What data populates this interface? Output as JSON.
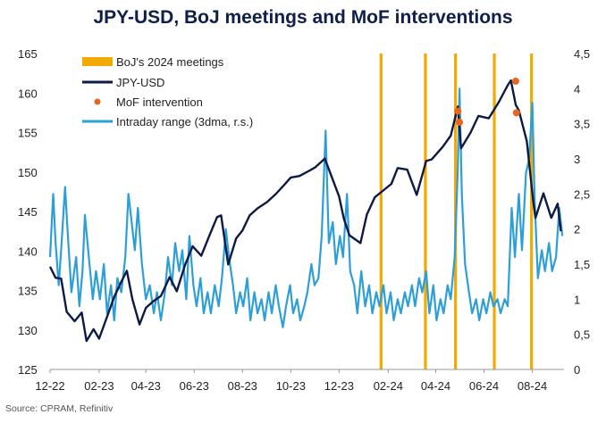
{
  "title": "JPY-USD, BoJ meetings and MoF interventions",
  "source": "Source: CPRAM, Refinitiv",
  "chart_data": {
    "type": "line",
    "title": "JPY-USD, BoJ meetings and MoF interventions",
    "x_axis": {
      "type": "date",
      "range": [
        "2022-12-01",
        "2024-09-10"
      ],
      "tick_labels": [
        {
          "label": "12-22",
          "date": "2022-12-01"
        },
        {
          "label": "02-23",
          "date": "2023-02-01"
        },
        {
          "label": "04-23",
          "date": "2023-04-01"
        },
        {
          "label": "06-23",
          "date": "2023-06-01"
        },
        {
          "label": "08-23",
          "date": "2023-08-01"
        },
        {
          "label": "10-23",
          "date": "2023-10-01"
        },
        {
          "label": "12-23",
          "date": "2023-12-01"
        },
        {
          "label": "02-24",
          "date": "2024-02-01"
        },
        {
          "label": "04-24",
          "date": "2024-04-01"
        },
        {
          "label": "06-24",
          "date": "2024-06-01"
        },
        {
          "label": "08-24",
          "date": "2024-08-01"
        }
      ]
    },
    "y_left": {
      "min": 125,
      "max": 165,
      "ticks": [
        125,
        130,
        135,
        140,
        145,
        150,
        155,
        160,
        165
      ]
    },
    "y_right": {
      "min": 0,
      "max": 4.5,
      "ticks": [
        "0",
        "0,5",
        "1",
        "1,5",
        "2",
        "2,5",
        "3",
        "3,5",
        "4",
        "4,5"
      ]
    },
    "grid": false,
    "legend_position": "top-left",
    "colors": {
      "boj": "#f2a900",
      "jpy": "#0d1a45",
      "mof": "#e8651c",
      "range": "#2d9fd8"
    },
    "boj_meetings": {
      "name": "BoJ's 2024 meetings",
      "dates": [
        "2024-01-23",
        "2024-03-19",
        "2024-04-26",
        "2024-06-14",
        "2024-07-31"
      ]
    },
    "jpy_usd": {
      "name": "JPY-USD",
      "axis": "left",
      "points": [
        [
          "2022-12-01",
          138.0
        ],
        [
          "2022-12-08",
          136.6
        ],
        [
          "2022-12-15",
          136.5
        ],
        [
          "2022-12-22",
          132.3
        ],
        [
          "2023-01-01",
          131.1
        ],
        [
          "2023-01-10",
          132.2
        ],
        [
          "2023-01-16",
          128.6
        ],
        [
          "2023-01-25",
          130.1
        ],
        [
          "2023-02-01",
          128.9
        ],
        [
          "2023-02-10",
          131.4
        ],
        [
          "2023-02-20",
          134.2
        ],
        [
          "2023-03-01",
          136.1
        ],
        [
          "2023-03-08",
          137.5
        ],
        [
          "2023-03-15",
          133.9
        ],
        [
          "2023-03-24",
          130.7
        ],
        [
          "2023-04-01",
          132.8
        ],
        [
          "2023-04-10",
          133.6
        ],
        [
          "2023-04-20",
          134.3
        ],
        [
          "2023-05-01",
          136.7
        ],
        [
          "2023-05-10",
          134.9
        ],
        [
          "2023-05-20",
          138.1
        ],
        [
          "2023-05-30",
          140.6
        ],
        [
          "2023-06-10",
          139.4
        ],
        [
          "2023-06-20",
          141.9
        ],
        [
          "2023-06-30",
          144.3
        ],
        [
          "2023-07-05",
          144.5
        ],
        [
          "2023-07-14",
          138.3
        ],
        [
          "2023-07-24",
          141.6
        ],
        [
          "2023-08-01",
          142.6
        ],
        [
          "2023-08-10",
          144.5
        ],
        [
          "2023-08-20",
          145.4
        ],
        [
          "2023-09-01",
          146.2
        ],
        [
          "2023-09-12",
          147.2
        ],
        [
          "2023-09-22",
          148.3
        ],
        [
          "2023-10-01",
          149.3
        ],
        [
          "2023-10-12",
          149.5
        ],
        [
          "2023-10-25",
          150.2
        ],
        [
          "2023-11-01",
          150.6
        ],
        [
          "2023-11-13",
          151.7
        ],
        [
          "2023-11-22",
          149.3
        ],
        [
          "2023-12-01",
          146.9
        ],
        [
          "2023-12-07",
          144.1
        ],
        [
          "2023-12-14",
          142.0
        ],
        [
          "2023-12-28",
          141.0
        ],
        [
          "2024-01-05",
          144.6
        ],
        [
          "2024-01-15",
          146.8
        ],
        [
          "2024-01-25",
          147.6
        ],
        [
          "2024-02-05",
          148.5
        ],
        [
          "2024-02-13",
          150.5
        ],
        [
          "2024-02-25",
          150.3
        ],
        [
          "2024-03-08",
          147.1
        ],
        [
          "2024-03-20",
          151.4
        ],
        [
          "2024-03-27",
          151.6
        ],
        [
          "2024-04-10",
          153.2
        ],
        [
          "2024-04-20",
          154.6
        ],
        [
          "2024-04-29",
          158.3
        ],
        [
          "2024-05-03",
          153.0
        ],
        [
          "2024-05-15",
          155.0
        ],
        [
          "2024-05-25",
          157.1
        ],
        [
          "2024-06-07",
          156.8
        ],
        [
          "2024-06-20",
          158.9
        ],
        [
          "2024-07-01",
          161.0
        ],
        [
          "2024-07-05",
          161.6
        ],
        [
          "2024-07-11",
          158.5
        ],
        [
          "2024-07-15",
          157.8
        ],
        [
          "2024-07-25",
          153.9
        ],
        [
          "2024-08-02",
          146.5
        ],
        [
          "2024-08-05",
          144.2
        ],
        [
          "2024-08-15",
          147.3
        ],
        [
          "2024-08-25",
          144.2
        ],
        [
          "2024-09-02",
          146.0
        ],
        [
          "2024-09-06",
          142.5
        ]
      ]
    },
    "mof_interventions": {
      "name": "MoF intervention",
      "axis": "left",
      "points": [
        [
          "2024-04-29",
          157.7
        ],
        [
          "2024-05-01",
          156.3
        ],
        [
          "2024-07-11",
          161.5
        ],
        [
          "2024-07-12",
          157.5
        ]
      ]
    },
    "intraday_range": {
      "name": "Intraday range (3dma, r.s.)",
      "axis": "right",
      "points": [
        [
          "2022-12-01",
          1.6
        ],
        [
          "2022-12-05",
          2.5
        ],
        [
          "2022-12-08",
          1.8
        ],
        [
          "2022-12-12",
          1.2
        ],
        [
          "2022-12-15",
          1.7
        ],
        [
          "2022-12-20",
          2.6
        ],
        [
          "2022-12-23",
          2.0
        ],
        [
          "2022-12-28",
          1.1
        ],
        [
          "2023-01-03",
          1.6
        ],
        [
          "2023-01-07",
          0.9
        ],
        [
          "2023-01-11",
          1.4
        ],
        [
          "2023-01-14",
          2.2
        ],
        [
          "2023-01-19",
          1.6
        ],
        [
          "2023-01-24",
          1.0
        ],
        [
          "2023-01-28",
          1.4
        ],
        [
          "2023-02-02",
          1.0
        ],
        [
          "2023-02-07",
          1.5
        ],
        [
          "2023-02-11",
          0.8
        ],
        [
          "2023-02-16",
          1.2
        ],
        [
          "2023-02-20",
          0.7
        ],
        [
          "2023-02-24",
          1.3
        ],
        [
          "2023-03-01",
          1.1
        ],
        [
          "2023-03-06",
          1.6
        ],
        [
          "2023-03-10",
          2.5
        ],
        [
          "2023-03-14",
          2.1
        ],
        [
          "2023-03-18",
          1.7
        ],
        [
          "2023-03-22",
          2.3
        ],
        [
          "2023-03-27",
          1.5
        ],
        [
          "2023-04-01",
          1.0
        ],
        [
          "2023-04-06",
          1.2
        ],
        [
          "2023-04-11",
          0.8
        ],
        [
          "2023-04-15",
          1.1
        ],
        [
          "2023-04-20",
          0.7
        ],
        [
          "2023-04-25",
          1.1
        ],
        [
          "2023-04-29",
          1.6
        ],
        [
          "2023-05-04",
          1.2
        ],
        [
          "2023-05-08",
          1.8
        ],
        [
          "2023-05-13",
          1.4
        ],
        [
          "2023-05-17",
          1.7
        ],
        [
          "2023-05-22",
          1.0
        ],
        [
          "2023-05-26",
          1.9
        ],
        [
          "2023-05-31",
          1.2
        ],
        [
          "2023-06-04",
          0.9
        ],
        [
          "2023-06-09",
          1.3
        ],
        [
          "2023-06-13",
          0.8
        ],
        [
          "2023-06-18",
          1.1
        ],
        [
          "2023-06-22",
          0.8
        ],
        [
          "2023-06-27",
          1.2
        ],
        [
          "2023-07-02",
          0.9
        ],
        [
          "2023-07-06",
          1.3
        ],
        [
          "2023-07-11",
          2.0
        ],
        [
          "2023-07-15",
          1.6
        ],
        [
          "2023-07-20",
          1.2
        ],
        [
          "2023-07-24",
          0.8
        ],
        [
          "2023-07-29",
          1.1
        ],
        [
          "2023-08-02",
          0.9
        ],
        [
          "2023-08-07",
          1.3
        ],
        [
          "2023-08-11",
          0.7
        ],
        [
          "2023-08-16",
          1.1
        ],
        [
          "2023-08-20",
          0.8
        ],
        [
          "2023-08-25",
          1.0
        ],
        [
          "2023-08-29",
          0.7
        ],
        [
          "2023-09-03",
          1.1
        ],
        [
          "2023-09-07",
          0.8
        ],
        [
          "2023-09-12",
          1.2
        ],
        [
          "2023-09-16",
          0.9
        ],
        [
          "2023-09-21",
          0.6
        ],
        [
          "2023-09-25",
          0.9
        ],
        [
          "2023-09-30",
          1.2
        ],
        [
          "2023-10-04",
          0.8
        ],
        [
          "2023-10-09",
          1.0
        ],
        [
          "2023-10-13",
          0.7
        ],
        [
          "2023-10-18",
          0.9
        ],
        [
          "2023-10-22",
          1.1
        ],
        [
          "2023-10-27",
          1.5
        ],
        [
          "2023-10-31",
          1.2
        ],
        [
          "2023-11-05",
          1.3
        ],
        [
          "2023-11-09",
          1.9
        ],
        [
          "2023-11-14",
          3.4
        ],
        [
          "2023-11-18",
          1.8
        ],
        [
          "2023-11-23",
          2.1
        ],
        [
          "2023-11-27",
          1.5
        ],
        [
          "2023-12-02",
          1.9
        ],
        [
          "2023-12-06",
          1.6
        ],
        [
          "2023-12-11",
          2.5
        ],
        [
          "2023-12-15",
          1.4
        ],
        [
          "2023-12-20",
          1.2
        ],
        [
          "2023-12-24",
          0.8
        ],
        [
          "2023-12-29",
          1.4
        ],
        [
          "2024-01-03",
          0.9
        ],
        [
          "2024-01-08",
          1.2
        ],
        [
          "2024-01-12",
          0.8
        ],
        [
          "2024-01-17",
          1.1
        ],
        [
          "2024-01-21",
          0.9
        ],
        [
          "2024-01-26",
          1.2
        ],
        [
          "2024-01-30",
          0.8
        ],
        [
          "2024-02-04",
          1.1
        ],
        [
          "2024-02-08",
          0.7
        ],
        [
          "2024-02-13",
          1.0
        ],
        [
          "2024-02-17",
          0.8
        ],
        [
          "2024-02-22",
          1.1
        ],
        [
          "2024-02-26",
          0.9
        ],
        [
          "2024-03-02",
          1.2
        ],
        [
          "2024-03-06",
          0.9
        ],
        [
          "2024-03-11",
          1.3
        ],
        [
          "2024-03-15",
          1.1
        ],
        [
          "2024-03-20",
          1.4
        ],
        [
          "2024-03-24",
          0.8
        ],
        [
          "2024-03-29",
          1.2
        ],
        [
          "2024-04-02",
          0.7
        ],
        [
          "2024-04-07",
          1.0
        ],
        [
          "2024-04-11",
          0.8
        ],
        [
          "2024-04-16",
          1.2
        ],
        [
          "2024-04-20",
          1.0
        ],
        [
          "2024-04-25",
          1.6
        ],
        [
          "2024-04-29",
          2.9
        ],
        [
          "2024-05-01",
          4.0
        ],
        [
          "2024-05-04",
          2.5
        ],
        [
          "2024-05-08",
          1.5
        ],
        [
          "2024-05-13",
          1.1
        ],
        [
          "2024-05-17",
          0.8
        ],
        [
          "2024-05-22",
          1.0
        ],
        [
          "2024-05-26",
          0.7
        ],
        [
          "2024-05-31",
          1.0
        ],
        [
          "2024-06-04",
          0.8
        ],
        [
          "2024-06-09",
          1.1
        ],
        [
          "2024-06-13",
          0.9
        ],
        [
          "2024-06-18",
          1.0
        ],
        [
          "2024-06-22",
          0.8
        ],
        [
          "2024-06-27",
          1.0
        ],
        [
          "2024-07-01",
          0.9
        ],
        [
          "2024-07-06",
          2.3
        ],
        [
          "2024-07-10",
          1.6
        ],
        [
          "2024-07-15",
          2.5
        ],
        [
          "2024-07-19",
          1.7
        ],
        [
          "2024-07-24",
          2.8
        ],
        [
          "2024-07-28",
          3.0
        ],
        [
          "2024-08-01",
          3.8
        ],
        [
          "2024-08-04",
          2.4
        ],
        [
          "2024-08-08",
          1.3
        ],
        [
          "2024-08-13",
          1.7
        ],
        [
          "2024-08-17",
          1.4
        ],
        [
          "2024-08-22",
          1.8
        ],
        [
          "2024-08-26",
          1.4
        ],
        [
          "2024-08-31",
          1.6
        ],
        [
          "2024-09-04",
          2.3
        ],
        [
          "2024-09-08",
          1.9
        ]
      ]
    }
  }
}
